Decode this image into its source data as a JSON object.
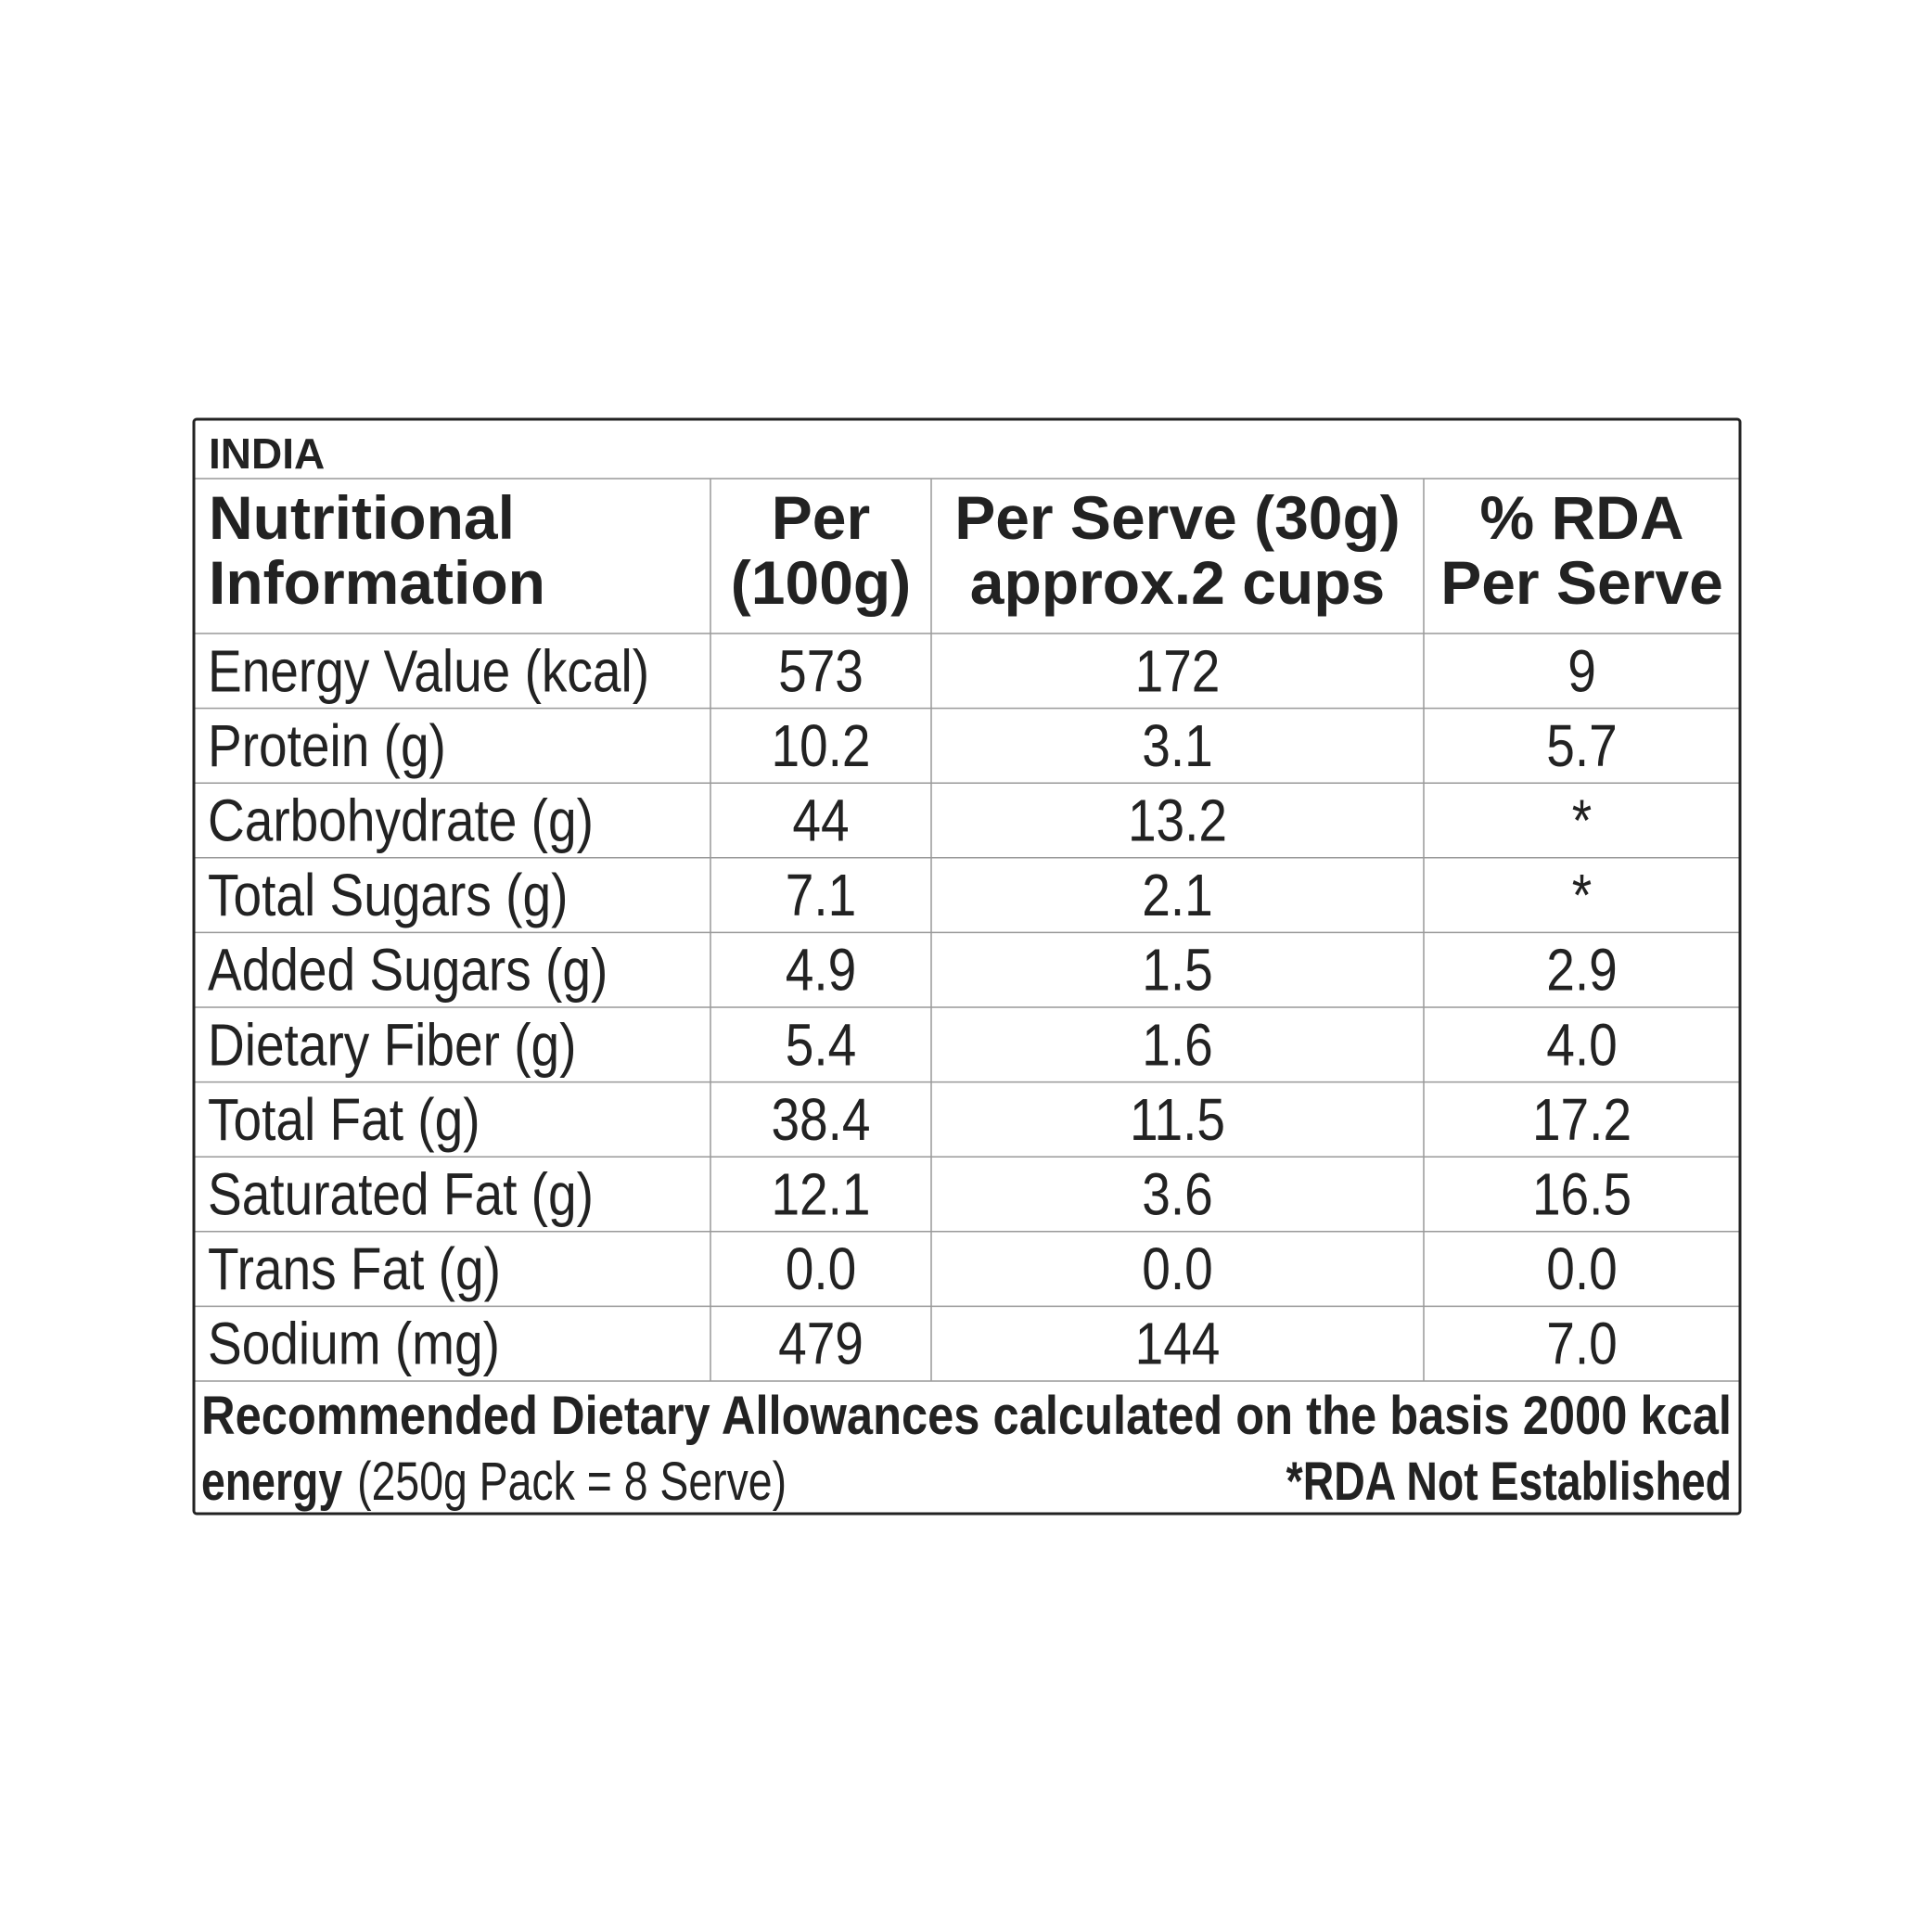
{
  "table": {
    "region": "INDIA",
    "header": [
      [
        "Nutritional",
        "Information"
      ],
      [
        "Per",
        "(100g)"
      ],
      [
        "Per Serve (30g)",
        "approx.2 cups"
      ],
      [
        "% RDA",
        "Per Serve"
      ]
    ],
    "rows": [
      [
        "Energy Value (kcal)",
        "573",
        "172",
        "9"
      ],
      [
        "Protein (g)",
        "10.2",
        "3.1",
        "5.7"
      ],
      [
        "Carbohydrate (g)",
        "44",
        "13.2",
        "*"
      ],
      [
        "Total Sugars (g)",
        "7.1",
        "2.1",
        "*"
      ],
      [
        "Added Sugars (g)",
        "4.9",
        "1.5",
        "2.9"
      ],
      [
        "Dietary Fiber (g)",
        "5.4",
        "1.6",
        "4.0"
      ],
      [
        "Total Fat (g)",
        "38.4",
        "11.5",
        "17.2"
      ],
      [
        "Saturated Fat (g)",
        "12.1",
        "3.6",
        "16.5"
      ],
      [
        "Trans Fat (g)",
        "0.0",
        "0.0",
        "0.0"
      ],
      [
        "Sodium (mg)",
        "479",
        "144",
        "7.0"
      ]
    ],
    "footer": {
      "line1": "Recommended Dietary Allowances calculated on the basis 2000 kcal",
      "energy": "energy",
      "pack": "(250g Pack = 8 Serve)",
      "note": "*RDA Not Established"
    }
  }
}
